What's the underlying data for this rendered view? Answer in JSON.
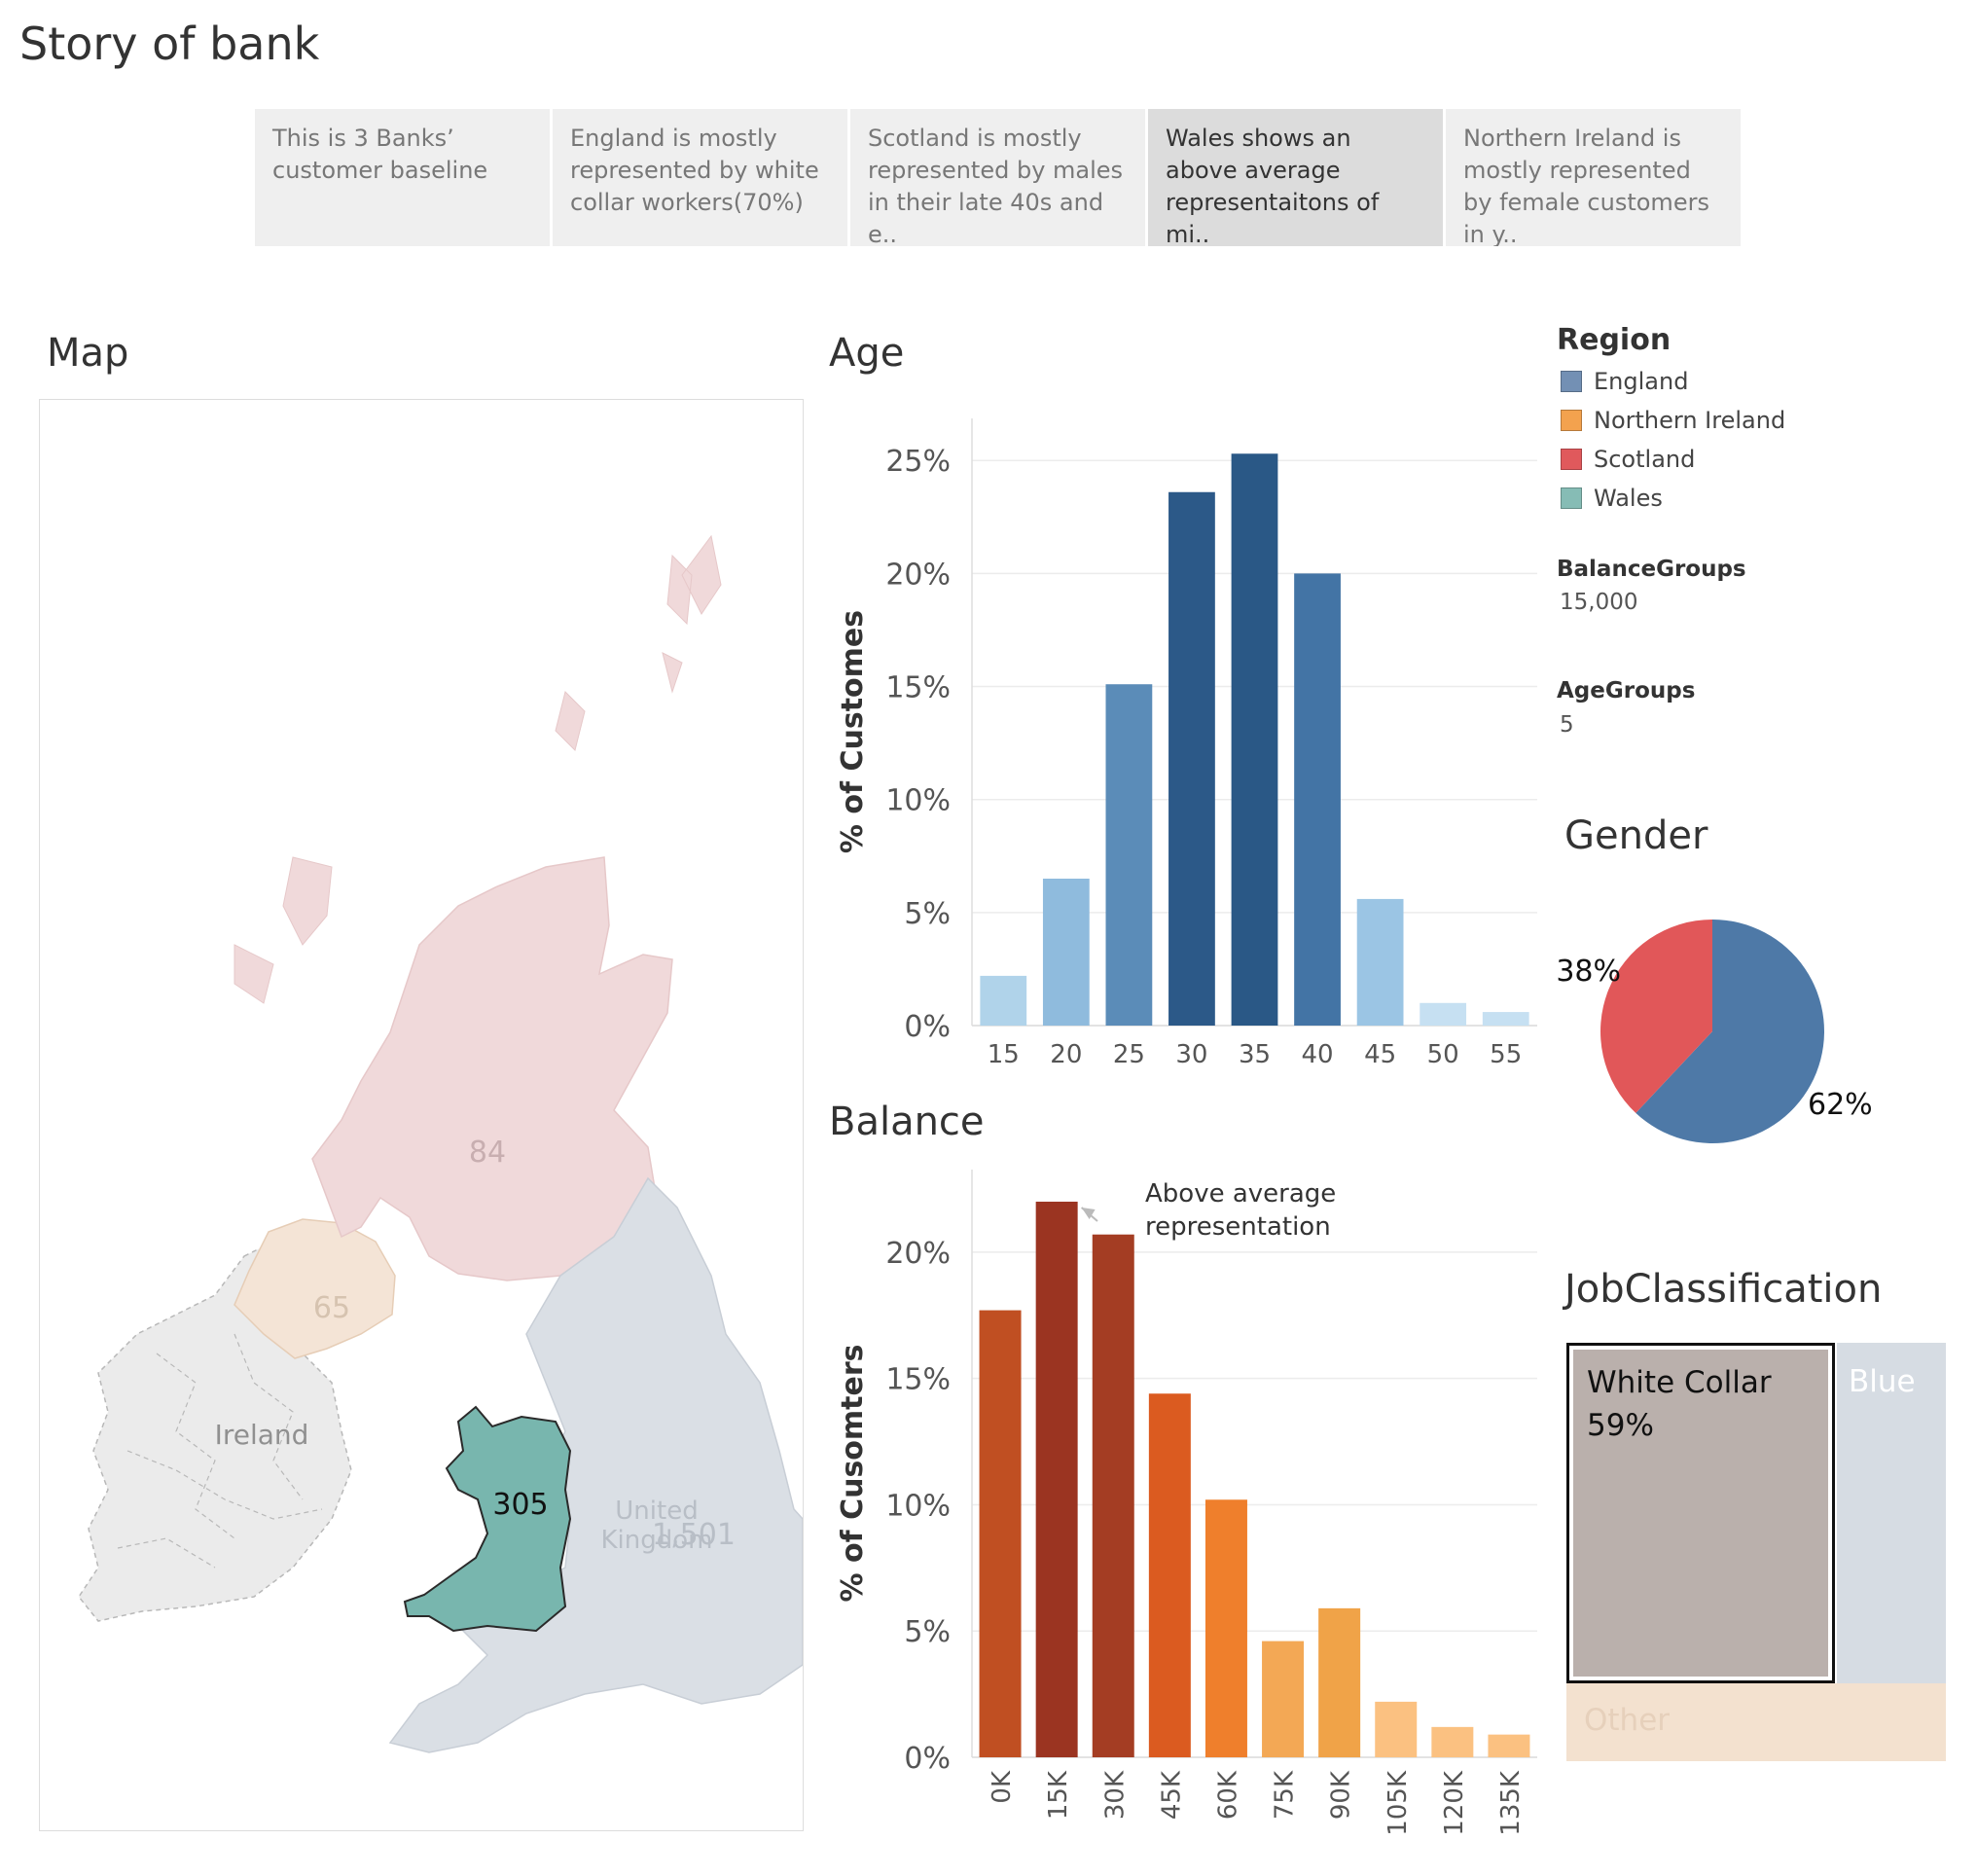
{
  "title": "Story of bank",
  "story_points": [
    {
      "text": "This is 3 Banks’ customer baseline"
    },
    {
      "text": "England is mostly represented by white collar workers(70%)"
    },
    {
      "text": "Scotland is mostly represented by males in their late 40s and e.."
    },
    {
      "text": "Wales shows an above average representaitons of mi.."
    },
    {
      "text": "Northern Ireland is mostly represented by female customers in y.."
    }
  ],
  "active_story_point": 3,
  "map": {
    "title": "Map",
    "labels": {
      "scotland": "84",
      "northern_ireland": "65",
      "ireland": "Ireland",
      "wales": "305",
      "uk_line1": "United",
      "uk_line2": "Kingdom",
      "england": "1,501"
    }
  },
  "legend": {
    "title": "Region",
    "items": [
      {
        "label": "England",
        "color": "#7390b4"
      },
      {
        "label": "Northern Ireland",
        "color": "#f3a24e"
      },
      {
        "label": "Scotland",
        "color": "#e0595c"
      },
      {
        "label": "Wales",
        "color": "#86bcb5"
      }
    ]
  },
  "params": {
    "balance_groups": {
      "label": "BalanceGroups",
      "value": "15,000"
    },
    "age_groups": {
      "label": "AgeGroups",
      "value": "5"
    }
  },
  "chart_data": [
    {
      "type": "bar",
      "title": "Age",
      "ylabel": "% of Customes",
      "xlabel": "",
      "categories": [
        "15",
        "20",
        "25",
        "30",
        "35",
        "40",
        "45",
        "50",
        "55"
      ],
      "values": [
        2.2,
        6.5,
        15.1,
        23.6,
        25.3,
        20.0,
        5.6,
        1.0,
        0.6
      ],
      "colors": [
        "#b0d3ea",
        "#8fbbdd",
        "#5b8cb8",
        "#2c5988",
        "#2a5886",
        "#4374a5",
        "#9bc5e4",
        "#c6e0f2",
        "#c6e0f2"
      ],
      "yticks": [
        "0%",
        "5%",
        "10%",
        "15%",
        "20%",
        "25%"
      ],
      "ylim": [
        0,
        26
      ],
      "grid": true
    },
    {
      "type": "bar",
      "title": "Balance",
      "ylabel": "% of Cusomters",
      "xlabel": "",
      "categories": [
        "0K",
        "15K",
        "30K",
        "45K",
        "60K",
        "75K",
        "90K",
        "105K",
        "120K",
        "135K"
      ],
      "values": [
        17.7,
        22.0,
        20.7,
        14.4,
        10.2,
        4.6,
        5.9,
        2.2,
        1.2,
        0.9
      ],
      "colors": [
        "#c04f22",
        "#9b3421",
        "#a43d23",
        "#db5b20",
        "#ef7f2c",
        "#f3a855",
        "#f0a348",
        "#fbc181",
        "#fbc181",
        "#fbc181"
      ],
      "yticks": [
        "0%",
        "5%",
        "10%",
        "15%",
        "20%"
      ],
      "ylim": [
        0,
        22.5
      ],
      "grid": true,
      "annotation": {
        "line1": "Above average",
        "line2": "representation",
        "target_index": 1
      }
    },
    {
      "type": "pie",
      "title": "Gender",
      "slices": [
        {
          "value": 62,
          "label": "62%",
          "color": "#4e79a7"
        },
        {
          "value": 38,
          "label": "38%",
          "color": "#e15759"
        }
      ]
    },
    {
      "type": "treemap",
      "title": "JobClassification",
      "items": [
        {
          "name": "White Collar",
          "value_label": "59%",
          "color": "#bab0ac"
        },
        {
          "name": "Blue",
          "color": "#d6dce3"
        },
        {
          "name": "Other",
          "color": "#f3e1cf"
        }
      ]
    }
  ]
}
